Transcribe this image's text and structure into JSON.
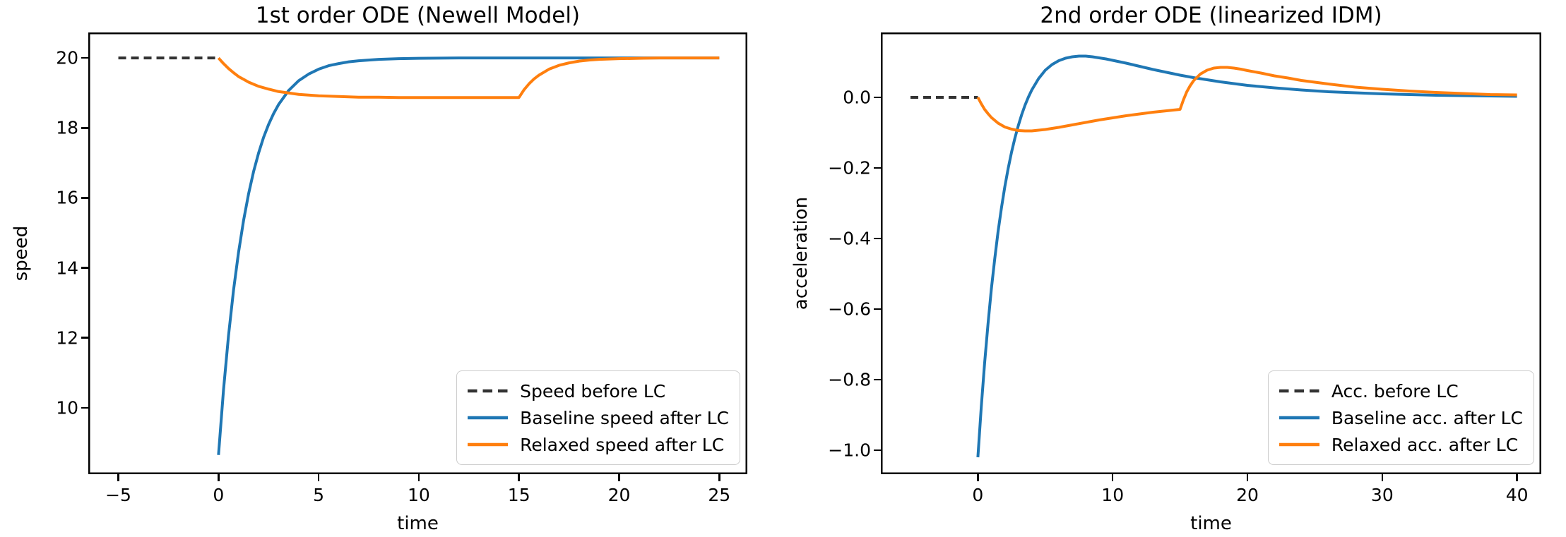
{
  "figure": {
    "background": "#ffffff"
  },
  "chart_data": [
    {
      "type": "line",
      "title": "1st order ODE (Newell Model)",
      "xlabel": "time",
      "ylabel": "speed",
      "xlim": [
        -6.5,
        26.4
      ],
      "ylim": [
        8.1,
        20.73
      ],
      "xticks": [
        -5,
        0,
        5,
        10,
        15,
        20,
        25
      ],
      "xtick_labels": [
        "−5",
        "0",
        "5",
        "10",
        "15",
        "20",
        "25"
      ],
      "yticks": [
        10,
        12,
        14,
        16,
        18,
        20
      ],
      "ytick_labels": [
        "10",
        "12",
        "14",
        "16",
        "18",
        "20"
      ],
      "grid": false,
      "legend_position": "lower right",
      "series": [
        {
          "key": "speed-before-lc",
          "name": "Speed before LC",
          "color": "#333333",
          "style": "dashed",
          "points": [
            [
              -5,
              20
            ],
            [
              0,
              20
            ]
          ]
        },
        {
          "key": "baseline-speed-after-lc",
          "name": "Baseline speed after LC",
          "color": "#1f77b4",
          "style": "solid",
          "points": [
            [
              0,
              8.65
            ],
            [
              0.25,
              10.51
            ],
            [
              0.5,
              12.06
            ],
            [
              0.75,
              13.36
            ],
            [
              1,
              14.44
            ],
            [
              1.25,
              15.35
            ],
            [
              1.5,
              16.11
            ],
            [
              1.75,
              16.75
            ],
            [
              2,
              17.28
            ],
            [
              2.25,
              17.73
            ],
            [
              2.5,
              18.1
            ],
            [
              2.75,
              18.41
            ],
            [
              3,
              18.67
            ],
            [
              3.5,
              19.07
            ],
            [
              4,
              19.35
            ],
            [
              4.5,
              19.54
            ],
            [
              5,
              19.68
            ],
            [
              5.5,
              19.78
            ],
            [
              6,
              19.84
            ],
            [
              6.5,
              19.89
            ],
            [
              7,
              19.92
            ],
            [
              8,
              19.96
            ],
            [
              9,
              19.98
            ],
            [
              10,
              19.99
            ],
            [
              12,
              20
            ],
            [
              15,
              20
            ],
            [
              18,
              20
            ],
            [
              21,
              20
            ],
            [
              25,
              20
            ]
          ]
        },
        {
          "key": "relaxed-speed-after-lc",
          "name": "Relaxed speed after LC",
          "color": "#ff7f0e",
          "style": "solid",
          "points": [
            [
              0,
              20
            ],
            [
              0.25,
              19.84
            ],
            [
              0.5,
              19.7
            ],
            [
              0.75,
              19.58
            ],
            [
              1,
              19.47
            ],
            [
              1.25,
              19.39
            ],
            [
              1.5,
              19.31
            ],
            [
              1.75,
              19.25
            ],
            [
              2,
              19.19
            ],
            [
              2.5,
              19.11
            ],
            [
              3,
              19.04
            ],
            [
              3.5,
              19.0
            ],
            [
              4,
              18.96
            ],
            [
              4.5,
              18.94
            ],
            [
              5,
              18.92
            ],
            [
              5.5,
              18.91
            ],
            [
              6,
              18.9
            ],
            [
              7,
              18.88
            ],
            [
              8,
              18.88
            ],
            [
              9,
              18.87
            ],
            [
              10,
              18.87
            ],
            [
              12,
              18.87
            ],
            [
              15,
              18.87
            ],
            [
              15.25,
              19.09
            ],
            [
              15.5,
              19.26
            ],
            [
              15.75,
              19.4
            ],
            [
              16,
              19.51
            ],
            [
              16.5,
              19.68
            ],
            [
              17,
              19.79
            ],
            [
              17.5,
              19.86
            ],
            [
              18,
              19.91
            ],
            [
              18.5,
              19.94
            ],
            [
              19,
              19.96
            ],
            [
              19.5,
              19.97
            ],
            [
              20,
              19.98
            ],
            [
              21,
              19.99
            ],
            [
              22,
              20
            ],
            [
              23,
              20
            ],
            [
              25,
              20
            ]
          ]
        }
      ]
    },
    {
      "type": "line",
      "title": "2nd order ODE (linearized IDM)",
      "xlabel": "time",
      "ylabel": "acceleration",
      "xlim": [
        -7.2,
        41.8
      ],
      "ylim": [
        -1.068,
        0.184
      ],
      "xticks": [
        0,
        10,
        20,
        30,
        40
      ],
      "xtick_labels": [
        "0",
        "10",
        "20",
        "30",
        "40"
      ],
      "yticks": [
        0.0,
        -0.2,
        -0.4,
        -0.6,
        -0.8,
        -1.0
      ],
      "ytick_labels": [
        "0.0",
        "−0.2",
        "−0.4",
        "−0.6",
        "−0.8",
        "−1.0"
      ],
      "grid": false,
      "legend_position": "lower right",
      "series": [
        {
          "key": "acc-before-lc",
          "name": "Acc. before LC",
          "color": "#333333",
          "style": "dashed",
          "points": [
            [
              -5,
              0
            ],
            [
              0,
              0
            ]
          ]
        },
        {
          "key": "baseline-acc-after-lc",
          "name": "Baseline acc. after LC",
          "color": "#1f77b4",
          "style": "solid",
          "points": [
            [
              0,
              -1.02
            ],
            [
              0.25,
              -0.878
            ],
            [
              0.5,
              -0.753
            ],
            [
              0.75,
              -0.643
            ],
            [
              1,
              -0.543
            ],
            [
              1.25,
              -0.458
            ],
            [
              1.5,
              -0.38
            ],
            [
              1.75,
              -0.313
            ],
            [
              2,
              -0.253
            ],
            [
              2.25,
              -0.201
            ],
            [
              2.5,
              -0.155
            ],
            [
              2.75,
              -0.115
            ],
            [
              3,
              -0.08
            ],
            [
              3.25,
              -0.049
            ],
            [
              3.5,
              -0.022
            ],
            [
              3.75,
              0.001
            ],
            [
              4,
              0.021
            ],
            [
              4.5,
              0.053
            ],
            [
              5,
              0.077
            ],
            [
              5.5,
              0.093
            ],
            [
              6,
              0.104
            ],
            [
              6.5,
              0.111
            ],
            [
              7,
              0.115
            ],
            [
              7.5,
              0.117
            ],
            [
              8,
              0.117
            ],
            [
              8.5,
              0.115
            ],
            [
              9,
              0.112
            ],
            [
              9.5,
              0.109
            ],
            [
              10,
              0.105
            ],
            [
              11,
              0.097
            ],
            [
              12,
              0.088
            ],
            [
              13,
              0.079
            ],
            [
              14,
              0.071
            ],
            [
              15,
              0.063
            ],
            [
              16,
              0.056
            ],
            [
              17,
              0.05
            ],
            [
              18,
              0.044
            ],
            [
              19,
              0.039
            ],
            [
              20,
              0.034
            ],
            [
              22,
              0.027
            ],
            [
              24,
              0.021
            ],
            [
              26,
              0.016
            ],
            [
              28,
              0.013
            ],
            [
              30,
              0.01
            ],
            [
              32,
              0.008
            ],
            [
              34,
              0.006
            ],
            [
              36,
              0.005
            ],
            [
              38,
              0.004
            ],
            [
              40,
              0.003
            ]
          ]
        },
        {
          "key": "relaxed-acc-after-lc",
          "name": "Relaxed acc. after LC",
          "color": "#ff7f0e",
          "style": "solid",
          "points": [
            [
              0,
              0
            ],
            [
              0.25,
              -0.018
            ],
            [
              0.5,
              -0.034
            ],
            [
              0.75,
              -0.046
            ],
            [
              1,
              -0.057
            ],
            [
              1.5,
              -0.073
            ],
            [
              2,
              -0.084
            ],
            [
              2.5,
              -0.09
            ],
            [
              3,
              -0.094
            ],
            [
              3.5,
              -0.095
            ],
            [
              4,
              -0.095
            ],
            [
              4.5,
              -0.093
            ],
            [
              5,
              -0.091
            ],
            [
              6,
              -0.085
            ],
            [
              7,
              -0.078
            ],
            [
              8,
              -0.071
            ],
            [
              9,
              -0.064
            ],
            [
              10,
              -0.058
            ],
            [
              11,
              -0.052
            ],
            [
              12,
              -0.047
            ],
            [
              13,
              -0.042
            ],
            [
              14,
              -0.038
            ],
            [
              15,
              -0.034
            ],
            [
              15.25,
              -0.007
            ],
            [
              15.5,
              0.016
            ],
            [
              15.75,
              0.033
            ],
            [
              16,
              0.047
            ],
            [
              16.5,
              0.066
            ],
            [
              17,
              0.077
            ],
            [
              17.5,
              0.083
            ],
            [
              18,
              0.085
            ],
            [
              18.5,
              0.085
            ],
            [
              19,
              0.083
            ],
            [
              19.5,
              0.08
            ],
            [
              20,
              0.076
            ],
            [
              21,
              0.069
            ],
            [
              22,
              0.061
            ],
            [
              23,
              0.055
            ],
            [
              24,
              0.048
            ],
            [
              25,
              0.043
            ],
            [
              26,
              0.038
            ],
            [
              28,
              0.029
            ],
            [
              30,
              0.023
            ],
            [
              32,
              0.018
            ],
            [
              34,
              0.014
            ],
            [
              36,
              0.011
            ],
            [
              38,
              0.008
            ],
            [
              40,
              0.007
            ]
          ]
        }
      ]
    }
  ]
}
